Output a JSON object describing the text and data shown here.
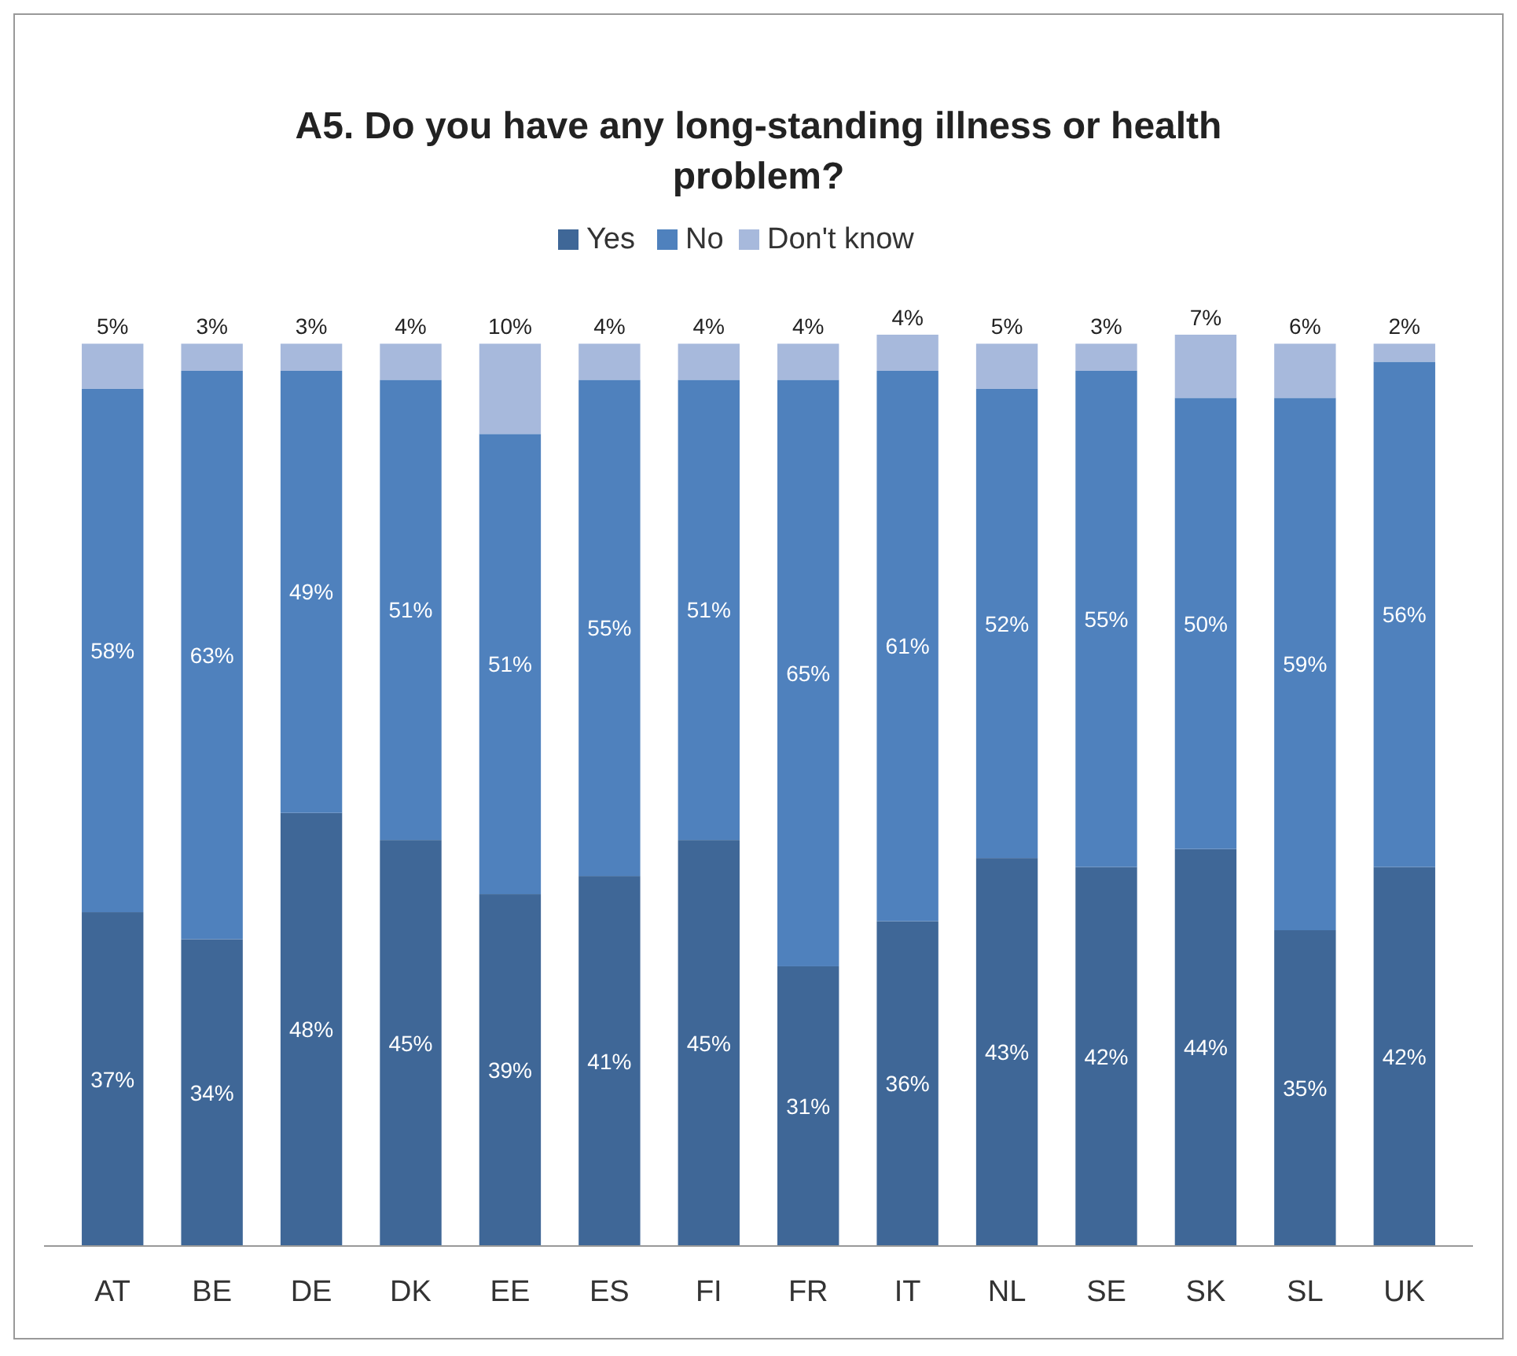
{
  "chart_data": {
    "type": "bar",
    "title": "A5. Do you have any long-standing illness or health problem?",
    "categories": [
      "AT",
      "BE",
      "DE",
      "DK",
      "EE",
      "ES",
      "FI",
      "FR",
      "IT",
      "NL",
      "SE",
      "SK",
      "SL",
      "UK"
    ],
    "stacked": true,
    "legend": "top",
    "tick_labels": "x",
    "series": [
      {
        "name": "Yes",
        "color": "#3f6797",
        "values": [
          37,
          34,
          48,
          45,
          39,
          41,
          45,
          31,
          36,
          43,
          42,
          44,
          35,
          42
        ],
        "value_labels": [
          "37%",
          "34%",
          "48%",
          "45%",
          "39%",
          "41%",
          "45%",
          "31%",
          "36%",
          "43%",
          "42%",
          "44%",
          "35%",
          "42%"
        ]
      },
      {
        "name": "No",
        "color": "#4f81bd",
        "values": [
          58,
          63,
          49,
          51,
          51,
          55,
          51,
          65,
          61,
          52,
          55,
          50,
          59,
          56
        ],
        "value_labels": [
          "58%",
          "63%",
          "49%",
          "51%",
          "51%",
          "55%",
          "51%",
          "65%",
          "61%",
          "52%",
          "55%",
          "50%",
          "59%",
          "56%"
        ]
      },
      {
        "name": "Don't know",
        "color": "#a7b9dc",
        "values": [
          5,
          3,
          3,
          4,
          10,
          4,
          4,
          4,
          4,
          5,
          3,
          7,
          6,
          2
        ],
        "value_labels": [
          "5%",
          "3%",
          "3%",
          "4%",
          "10%",
          "4%",
          "4%",
          "4%",
          "4%",
          "5%",
          "3%",
          "7%",
          "6%",
          "2%"
        ]
      }
    ]
  }
}
